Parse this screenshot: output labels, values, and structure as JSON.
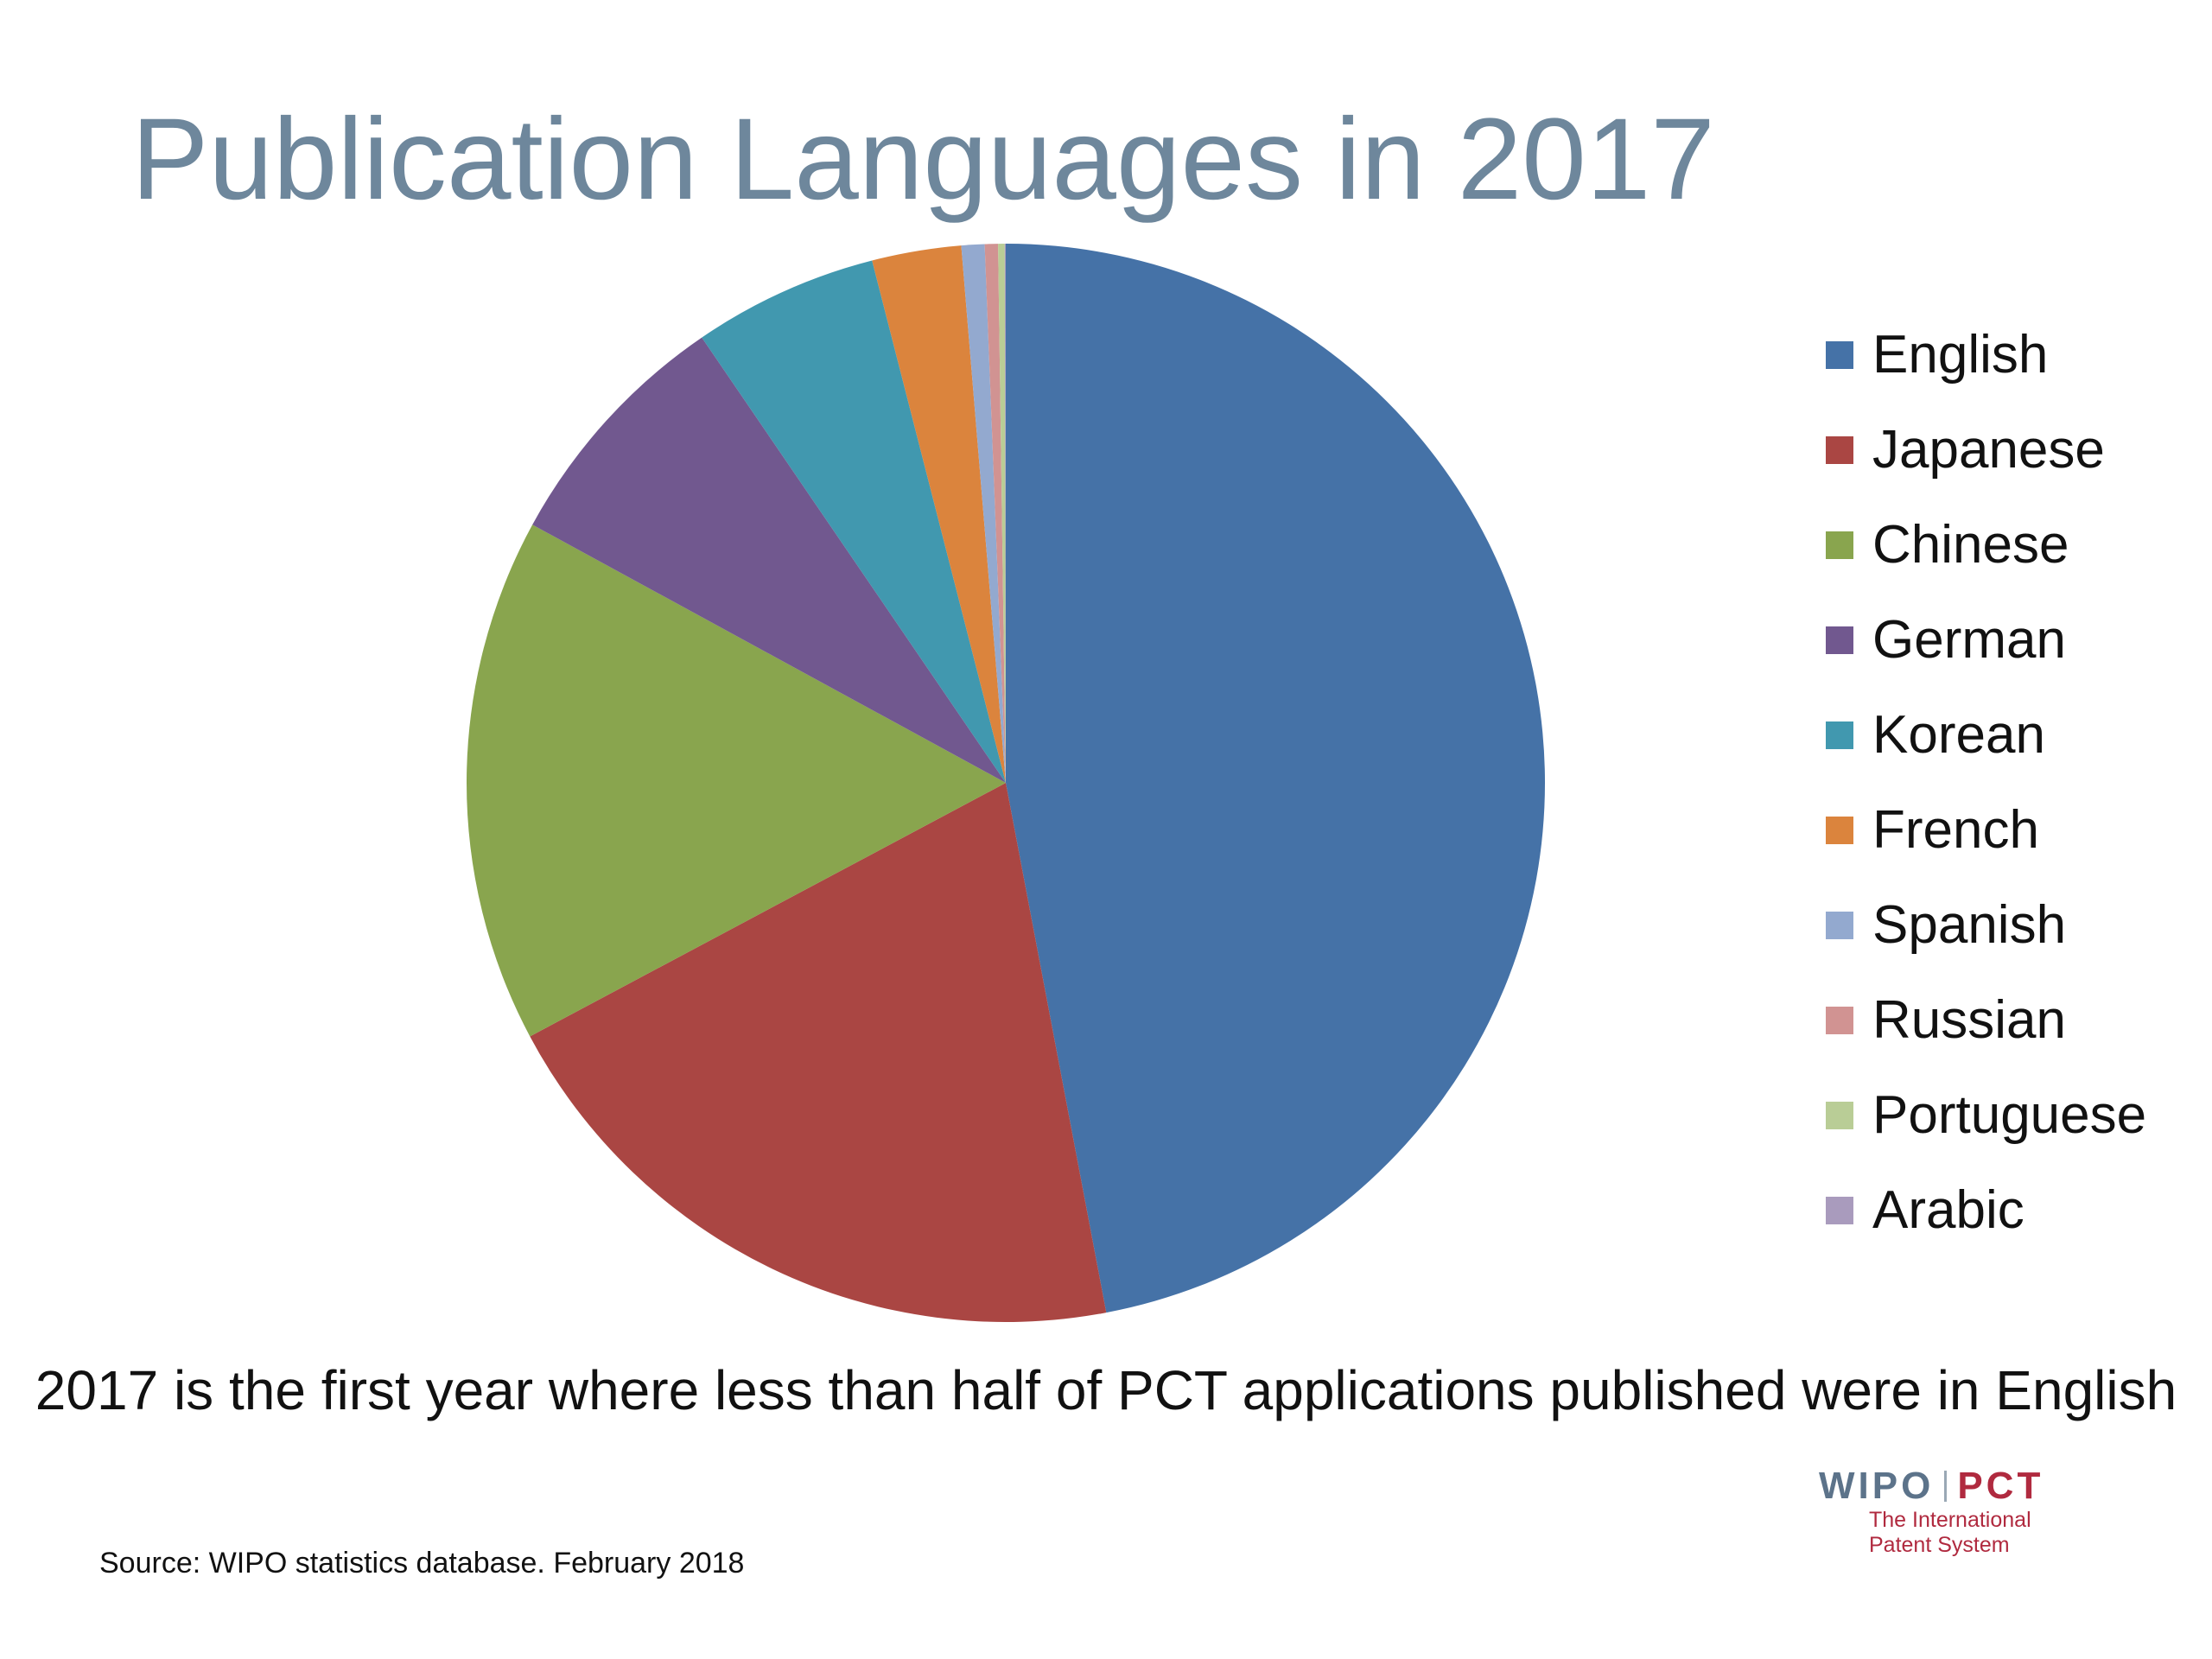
{
  "title": "Publication Languages in 2017",
  "caption": "2017 is the first year where less than half of PCT applications published were in English",
  "source": "Source: WIPO statistics database. February 2018",
  "logo": {
    "wipo": "WIPO",
    "pct": "PCT",
    "subtitle_line1": "The International",
    "subtitle_line2": "Patent System"
  },
  "chart_data": {
    "type": "pie",
    "title": "Publication Languages in 2017",
    "legend_position": "right",
    "start_angle": "12 o'clock, clockwise",
    "slices": [
      {
        "label": "English",
        "value": 47.5,
        "color": "#4572a7"
      },
      {
        "label": "Japanese",
        "value": 20.4,
        "color": "#aa4643"
      },
      {
        "label": "Chinese",
        "value": 15.9,
        "color": "#89a54e"
      },
      {
        "label": "German",
        "value": 7.6,
        "color": "#71588f"
      },
      {
        "label": "Korean",
        "value": 5.6,
        "color": "#4198af"
      },
      {
        "label": "French",
        "value": 2.7,
        "color": "#db843d"
      },
      {
        "label": "Spanish",
        "value": 0.7,
        "color": "#93a9cf"
      },
      {
        "label": "Russian",
        "value": 0.4,
        "color": "#d19392"
      },
      {
        "label": "Portuguese",
        "value": 0.2,
        "color": "#b9cd96"
      },
      {
        "label": "Arabic",
        "value": 0.03,
        "color": "#a99bbd"
      }
    ]
  }
}
